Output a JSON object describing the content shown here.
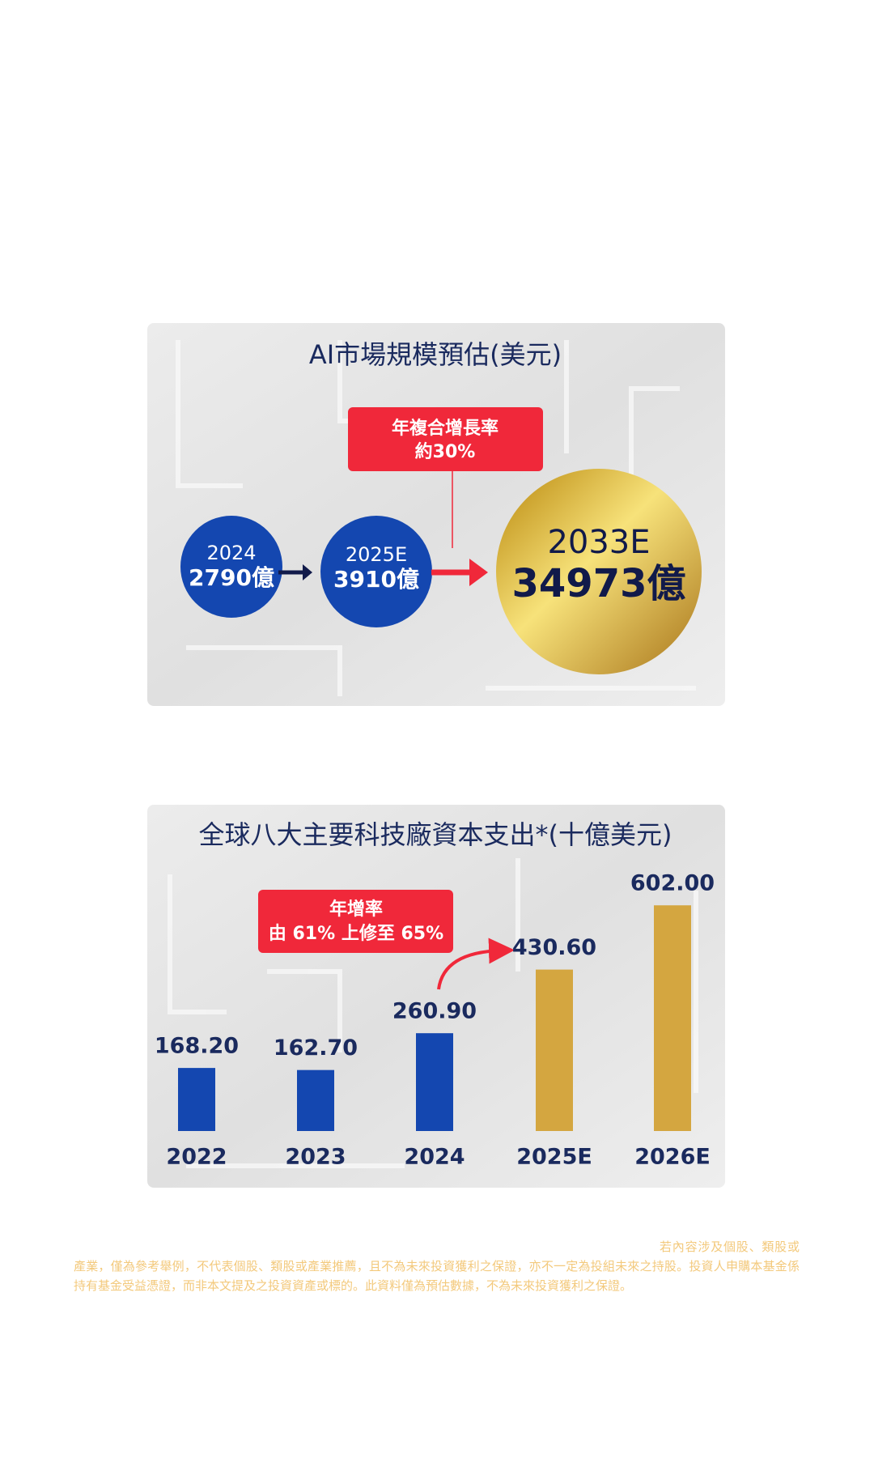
{
  "market": {
    "title": "AI市場規模預估(美元)",
    "cagr": [
      "年複合增長率",
      "約30%"
    ],
    "nodes": [
      {
        "year": "2024",
        "value": "2790億"
      },
      {
        "year": "2025E",
        "value": "3910億"
      },
      {
        "year": "2033E",
        "value": "34973億"
      }
    ]
  },
  "chart_data": {
    "type": "bar",
    "title": "全球八大主要科技廠資本支出*(十億美元)",
    "categories": [
      "2022",
      "2023",
      "2024",
      "2025E",
      "2026E"
    ],
    "values": [
      168.2,
      162.7,
      260.9,
      430.6,
      602.0
    ],
    "value_labels": [
      "168.20",
      "162.70",
      "260.90",
      "430.60",
      "602.00"
    ],
    "colors": [
      "#1447b0",
      "#1447b0",
      "#1447b0",
      "#d4a640",
      "#d4a640"
    ],
    "ylim": [
      0,
      650
    ],
    "annotation": [
      "年增率",
      "由 61% 上修至 65%"
    ]
  },
  "disclaimer": "若內容涉及個股、類股或產業，僅為參考舉例，不代表個股、類股或產業推薦，且不為未來投資獲利之保證，亦不一定為投組未來之持股。投資人申購本基金係持有基金受益憑證，而非本文提及之投資資產或標的。此資料僅為預估數據，不為未來投資獲利之保證。"
}
